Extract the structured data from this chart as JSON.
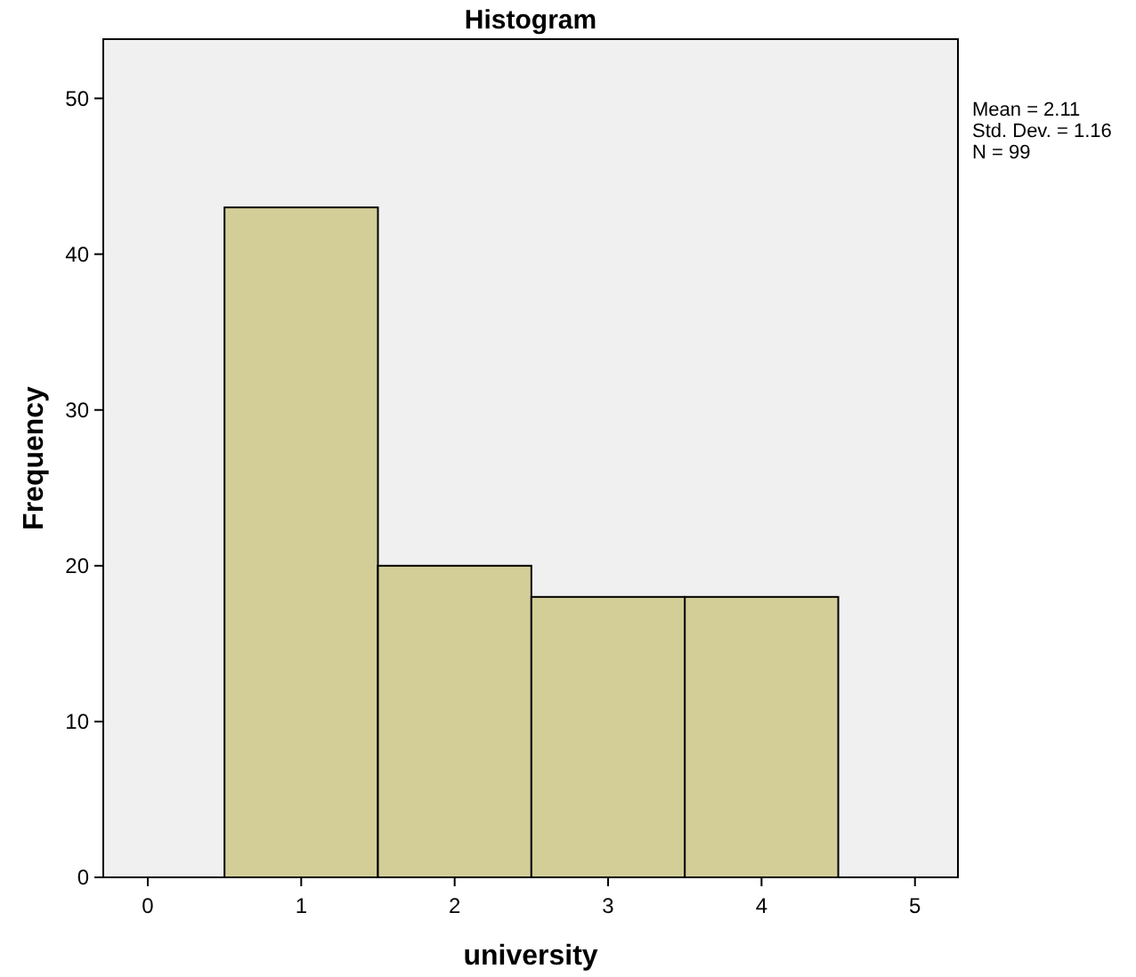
{
  "chart_data": {
    "type": "histogram",
    "title": "Histogram",
    "xlabel": "university",
    "ylabel": "Frequency",
    "bins": [
      0.5,
      1.5,
      2.5,
      3.5,
      4.5
    ],
    "values": [
      43,
      20,
      18,
      18
    ],
    "color": "#d3ce97",
    "xlim": [
      -0.29,
      5.28
    ],
    "xticks": [
      0,
      1,
      2,
      3,
      4,
      5
    ],
    "ylim": [
      0,
      53.8
    ],
    "yticks": [
      0,
      10,
      20,
      30,
      40,
      50
    ],
    "grid": false,
    "annotations": [
      "Mean = 2.11",
      "Std. Dev. = 1.16",
      "N = 99"
    ]
  }
}
